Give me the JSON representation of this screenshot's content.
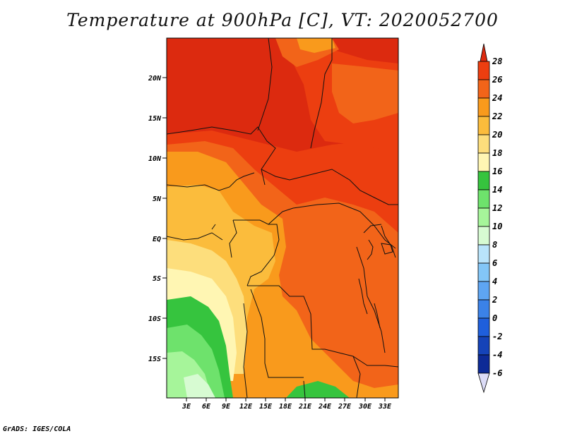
{
  "title": "Temperature at 900hPa [C], VT: 2020052700",
  "footer": "GrADS: IGES/COLA",
  "map": {
    "lat_labels": [
      "20N",
      "15N",
      "10N",
      "5N",
      "EQ",
      "5S",
      "10S",
      "15S"
    ],
    "lon_labels": [
      "3E",
      "6E",
      "9E",
      "12E",
      "15E",
      "18E",
      "21E",
      "24E",
      "27E",
      "30E",
      "33E"
    ]
  },
  "colorbar": {
    "labels": [
      "28",
      "26",
      "24",
      "22",
      "20",
      "18",
      "16",
      "14",
      "12",
      "10",
      "8",
      "6",
      "4",
      "2",
      "0",
      "-2",
      "-4",
      "-6"
    ],
    "colors": {
      "above_28": "#dc2a0f",
      "26_28": "#ec3e10",
      "24_26": "#f26419",
      "22_24": "#f99a1c",
      "20_22": "#fbbc3c",
      "18_20": "#fdde7c",
      "16_18": "#fff6b3",
      "14_16": "#36c43e",
      "12_14": "#6ee26c",
      "10_12": "#a6f59a",
      "8_10": "#d7fbd2",
      "6_8": "#b9e4fb",
      "4_6": "#83c6f7",
      "2_4": "#5ea5f2",
      "0_2": "#3b82e8",
      "m2_0": "#1f5fdc",
      "m4_m2": "#1543b8",
      "m6_m4": "#0d2a96",
      "below_m6": "#0a0a5e",
      "under_arrow": "#dcdcf7"
    }
  }
}
